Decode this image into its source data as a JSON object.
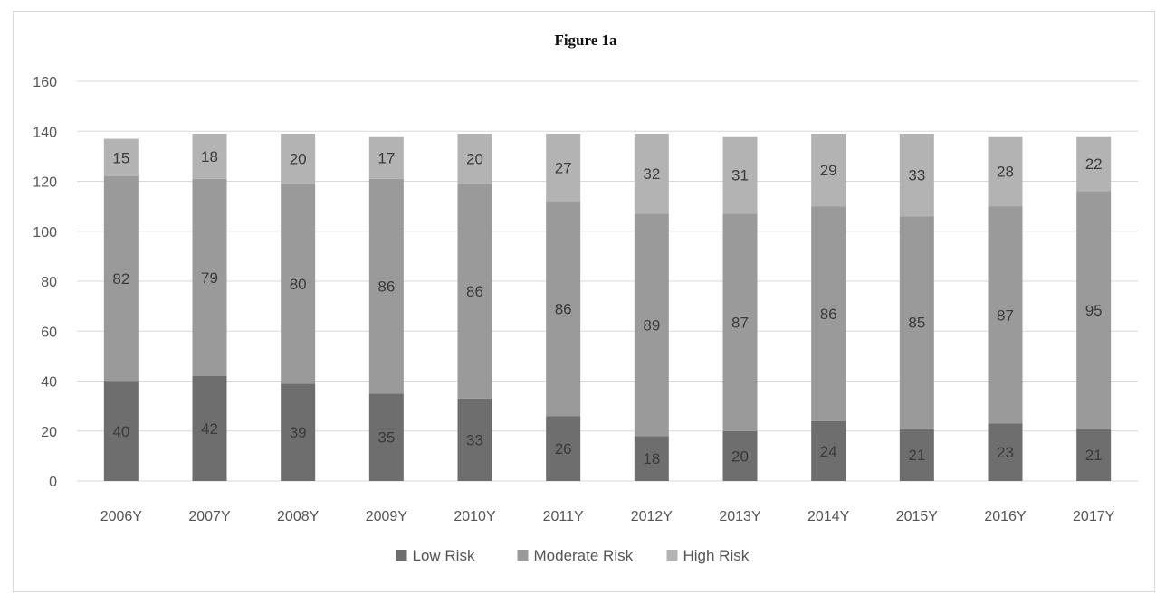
{
  "chart_data": {
    "type": "bar",
    "stacked": true,
    "title": "Figure 1a",
    "xlabel": "",
    "ylabel": "",
    "ylim": [
      0,
      160
    ],
    "yticks": [
      0,
      20,
      40,
      60,
      80,
      100,
      120,
      140,
      160
    ],
    "grid": true,
    "legend_position": "bottom",
    "categories": [
      "2006Y",
      "2007Y",
      "2008Y",
      "2009Y",
      "2010Y",
      "2011Y",
      "2012Y",
      "2013Y",
      "2014Y",
      "2015Y",
      "2016Y",
      "2017Y"
    ],
    "series": [
      {
        "name": "Low Risk",
        "color": "#6e6e6e",
        "values": [
          40,
          42,
          39,
          35,
          33,
          26,
          18,
          20,
          24,
          21,
          23,
          21
        ]
      },
      {
        "name": "Moderate Risk",
        "color": "#9a9a9a",
        "values": [
          82,
          79,
          80,
          86,
          86,
          86,
          89,
          87,
          86,
          85,
          87,
          95
        ]
      },
      {
        "name": "High Risk",
        "color": "#b3b3b3",
        "values": [
          15,
          18,
          20,
          17,
          20,
          27,
          32,
          31,
          29,
          33,
          28,
          22
        ]
      }
    ]
  }
}
